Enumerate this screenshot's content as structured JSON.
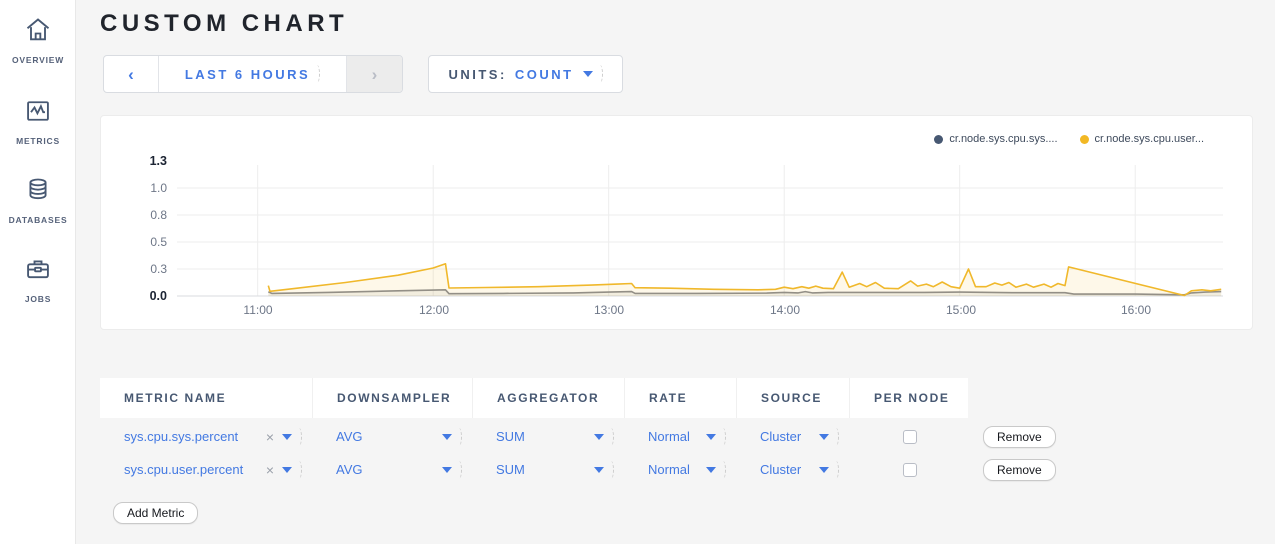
{
  "sidebar": {
    "items": [
      {
        "label": "OVERVIEW",
        "icon": "home-icon"
      },
      {
        "label": "METRICS",
        "icon": "metrics-icon"
      },
      {
        "label": "DATABASES",
        "icon": "databases-icon"
      },
      {
        "label": "JOBS",
        "icon": "jobs-icon"
      }
    ]
  },
  "header": {
    "title": "CUSTOM CHART"
  },
  "toolbar": {
    "time_range": {
      "prev": "‹",
      "label": "LAST 6 HOURS",
      "next": "›"
    },
    "units": {
      "label": "UNITS:",
      "value": "COUNT"
    }
  },
  "chart_data": {
    "type": "line",
    "title": "",
    "x_domain": [
      10.54,
      16.5
    ],
    "x_gridlines": [
      11,
      12,
      13,
      14,
      15,
      16
    ],
    "xticks": [
      "11:00",
      "12:00",
      "13:00",
      "14:00",
      "15:00",
      "16:00"
    ],
    "ylim": [
      0,
      1.3
    ],
    "yticks": [
      {
        "v": 0.0,
        "label": "0.0",
        "bold": true
      },
      {
        "v": 0.26,
        "label": "0.3",
        "bold": false
      },
      {
        "v": 0.52,
        "label": "0.5",
        "bold": false
      },
      {
        "v": 0.78,
        "label": "0.8",
        "bold": false
      },
      {
        "v": 1.04,
        "label": "1.0",
        "bold": false
      },
      {
        "v": 1.3,
        "label": "1.3",
        "bold": true
      }
    ],
    "legend": [
      {
        "label": "cr.node.sys.cpu.sys....",
        "color": "#475872"
      },
      {
        "label": "cr.node.sys.cpu.user...",
        "color": "#f2b824"
      }
    ],
    "series": [
      {
        "name": "cr.node.sys.cpu.sys....",
        "color": "#888b91",
        "fill": "rgba(130,135,140,0.10)",
        "points": [
          [
            11.06,
            0.04
          ],
          [
            11.08,
            0.025
          ],
          [
            11.4,
            0.035
          ],
          [
            11.8,
            0.05
          ],
          [
            12.07,
            0.06
          ],
          [
            12.09,
            0.022
          ],
          [
            12.4,
            0.025
          ],
          [
            12.8,
            0.03
          ],
          [
            13.0,
            0.038
          ],
          [
            13.13,
            0.042
          ],
          [
            13.15,
            0.025
          ],
          [
            13.5,
            0.025
          ],
          [
            13.9,
            0.028
          ],
          [
            14.0,
            0.035
          ],
          [
            14.08,
            0.03
          ],
          [
            14.12,
            0.042
          ],
          [
            14.16,
            0.03
          ],
          [
            14.25,
            0.035
          ],
          [
            14.5,
            0.035
          ],
          [
            14.8,
            0.035
          ],
          [
            15.0,
            0.038
          ],
          [
            15.3,
            0.032
          ],
          [
            15.6,
            0.032
          ],
          [
            15.65,
            0.018
          ],
          [
            16.0,
            0.018
          ],
          [
            16.28,
            0.012
          ],
          [
            16.32,
            0.03
          ],
          [
            16.4,
            0.038
          ],
          [
            16.49,
            0.042
          ]
        ]
      },
      {
        "name": "cr.node.sys.cpu.user...",
        "color": "#f0b82b",
        "fill": "rgba(241,183,43,0.10)",
        "points": [
          [
            11.06,
            0.1
          ],
          [
            11.07,
            0.045
          ],
          [
            11.2,
            0.07
          ],
          [
            11.5,
            0.13
          ],
          [
            11.8,
            0.2
          ],
          [
            12.0,
            0.27
          ],
          [
            12.07,
            0.31
          ],
          [
            12.09,
            0.077
          ],
          [
            12.3,
            0.082
          ],
          [
            12.6,
            0.09
          ],
          [
            12.9,
            0.105
          ],
          [
            13.05,
            0.115
          ],
          [
            13.13,
            0.12
          ],
          [
            13.15,
            0.08
          ],
          [
            13.35,
            0.075
          ],
          [
            13.6,
            0.065
          ],
          [
            13.85,
            0.06
          ],
          [
            13.95,
            0.065
          ],
          [
            14.0,
            0.085
          ],
          [
            14.05,
            0.07
          ],
          [
            14.1,
            0.09
          ],
          [
            14.14,
            0.075
          ],
          [
            14.18,
            0.095
          ],
          [
            14.22,
            0.075
          ],
          [
            14.28,
            0.07
          ],
          [
            14.33,
            0.23
          ],
          [
            14.37,
            0.085
          ],
          [
            14.43,
            0.12
          ],
          [
            14.47,
            0.09
          ],
          [
            14.52,
            0.13
          ],
          [
            14.57,
            0.075
          ],
          [
            14.65,
            0.07
          ],
          [
            14.72,
            0.145
          ],
          [
            14.76,
            0.095
          ],
          [
            14.81,
            0.115
          ],
          [
            14.85,
            0.09
          ],
          [
            14.9,
            0.135
          ],
          [
            14.95,
            0.09
          ],
          [
            15.0,
            0.075
          ],
          [
            15.05,
            0.26
          ],
          [
            15.09,
            0.09
          ],
          [
            15.15,
            0.09
          ],
          [
            15.2,
            0.125
          ],
          [
            15.24,
            0.105
          ],
          [
            15.28,
            0.13
          ],
          [
            15.32,
            0.085
          ],
          [
            15.38,
            0.115
          ],
          [
            15.42,
            0.085
          ],
          [
            15.48,
            0.115
          ],
          [
            15.52,
            0.085
          ],
          [
            15.56,
            0.12
          ],
          [
            15.6,
            0.1
          ],
          [
            15.62,
            0.28
          ],
          [
            16.28,
            0.005
          ],
          [
            16.32,
            0.05
          ],
          [
            16.38,
            0.06
          ],
          [
            16.43,
            0.05
          ],
          [
            16.49,
            0.065
          ]
        ]
      }
    ]
  },
  "table": {
    "columns": [
      "METRIC NAME",
      "DOWNSAMPLER",
      "AGGREGATOR",
      "RATE",
      "SOURCE",
      "PER NODE"
    ],
    "rows": [
      {
        "metric": "sys.cpu.sys.percent",
        "clear": "×",
        "downsampler": "AVG",
        "aggregator": "SUM",
        "rate": "Normal",
        "source": "Cluster",
        "per_node": false,
        "remove_label": "Remove"
      },
      {
        "metric": "sys.cpu.user.percent",
        "clear": "×",
        "downsampler": "AVG",
        "aggregator": "SUM",
        "rate": "Normal",
        "source": "Cluster",
        "per_node": false,
        "remove_label": "Remove"
      }
    ],
    "add_metric_label": "Add Metric"
  },
  "colors": {
    "accent_blue": "#4379e2",
    "slate": "#475872",
    "series_yellow": "#f0b82b",
    "series_gray": "#888b91"
  }
}
